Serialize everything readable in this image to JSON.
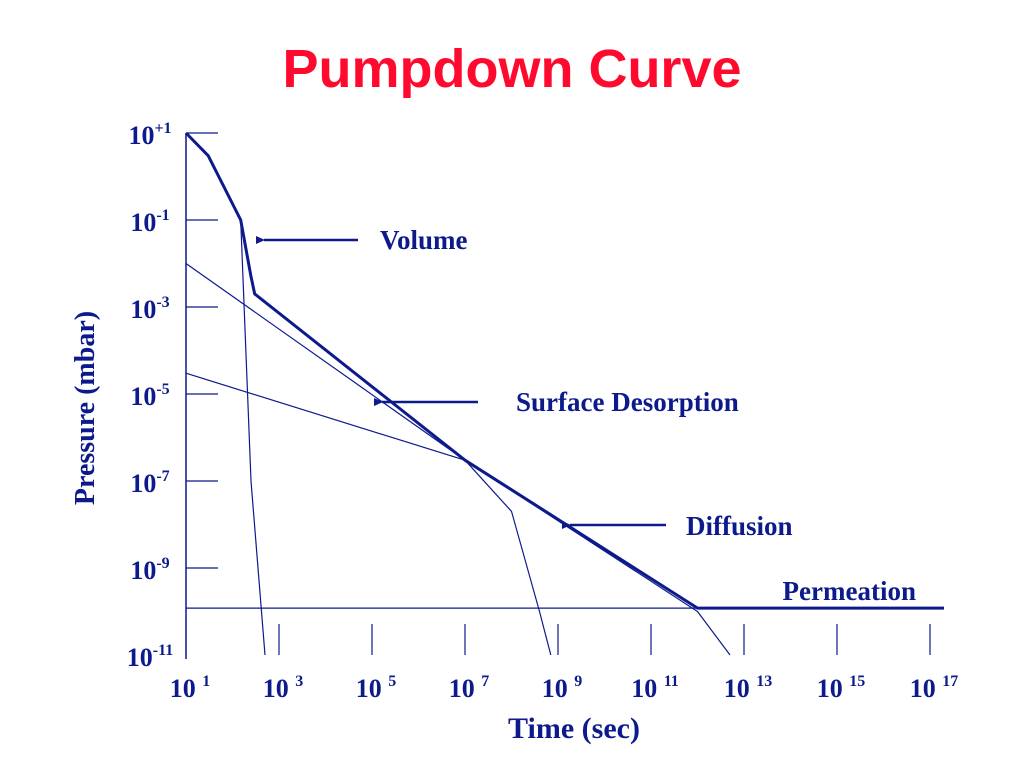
{
  "chart_data": {
    "type": "line",
    "title": "Pumpdown Curve",
    "xlabel": "Time (sec)",
    "ylabel": "Pressure (mbar)",
    "x_scale": "log",
    "y_scale": "log",
    "xlim": [
      10,
      100000000000000000
    ],
    "ylim": [
      1e-11,
      10
    ],
    "x_ticks": [
      {
        "base": "10",
        "exp": "1",
        "value": 10
      },
      {
        "base": "10",
        "exp": "3",
        "value": 1000
      },
      {
        "base": "10",
        "exp": "5",
        "value": 100000
      },
      {
        "base": "10",
        "exp": "7",
        "value": 10000000
      },
      {
        "base": "10",
        "exp": "9",
        "value": 1000000000
      },
      {
        "base": "10",
        "exp": "11",
        "value": 100000000000
      },
      {
        "base": "10",
        "exp": "13",
        "value": 10000000000000
      },
      {
        "base": "10",
        "exp": "15",
        "value": 1000000000000000
      },
      {
        "base": "10",
        "exp": "17",
        "value": 100000000000000000
      }
    ],
    "y_ticks": [
      {
        "base": "10",
        "exp": "+1",
        "value": 10
      },
      {
        "base": "10",
        "exp": "-1",
        "value": 0.1
      },
      {
        "base": "10",
        "exp": "-3",
        "value": 0.001
      },
      {
        "base": "10",
        "exp": "-5",
        "value": 1e-05
      },
      {
        "base": "10",
        "exp": "-7",
        "value": 1e-07
      },
      {
        "base": "10",
        "exp": "-9",
        "value": 1e-09
      },
      {
        "base": "10",
        "exp": "-11",
        "value": 1e-11
      }
    ],
    "series": [
      {
        "key": "volume",
        "style": "thin",
        "points": [
          [
            10,
            10
          ],
          [
            30,
            3
          ],
          [
            150,
            0.1
          ],
          [
            250,
            1e-07
          ],
          [
            500,
            1e-11
          ]
        ]
      },
      {
        "key": "surface",
        "style": "thin",
        "points": [
          [
            10,
            0.01
          ],
          [
            10000000,
            3e-07
          ],
          [
            100000000,
            2e-08
          ],
          [
            400000000,
            1e-10
          ],
          [
            700000000,
            1e-11
          ]
        ]
      },
      {
        "key": "diffusion",
        "style": "thin",
        "points": [
          [
            10,
            3e-05
          ],
          [
            10000000,
            3e-07
          ],
          [
            1000000000000,
            1e-10
          ],
          [
            5000000000000,
            1e-11
          ]
        ]
      },
      {
        "key": "permeation",
        "style": "thin",
        "points": [
          [
            10,
            1.2e-10
          ],
          [
            200000000000000000,
            1.2e-10
          ]
        ]
      },
      {
        "key": "total",
        "style": "bold",
        "points": [
          [
            10,
            10
          ],
          [
            30,
            3
          ],
          [
            150,
            0.1
          ],
          [
            250,
            0.005
          ],
          [
            300,
            0.002
          ],
          [
            10000000,
            3e-07
          ],
          [
            1000000000000,
            1.2e-10
          ],
          [
            200000000000000000,
            1.2e-10
          ]
        ]
      }
    ],
    "annotations": [
      {
        "key": "volume",
        "text": "Volume"
      },
      {
        "key": "surface",
        "text": "Surface Desorption"
      },
      {
        "key": "diffusion",
        "text": "Diffusion"
      },
      {
        "key": "permeation",
        "text": "Permeation"
      }
    ],
    "color": "#0c1a8c",
    "title_color": "#ff0a2e",
    "grid": false
  }
}
